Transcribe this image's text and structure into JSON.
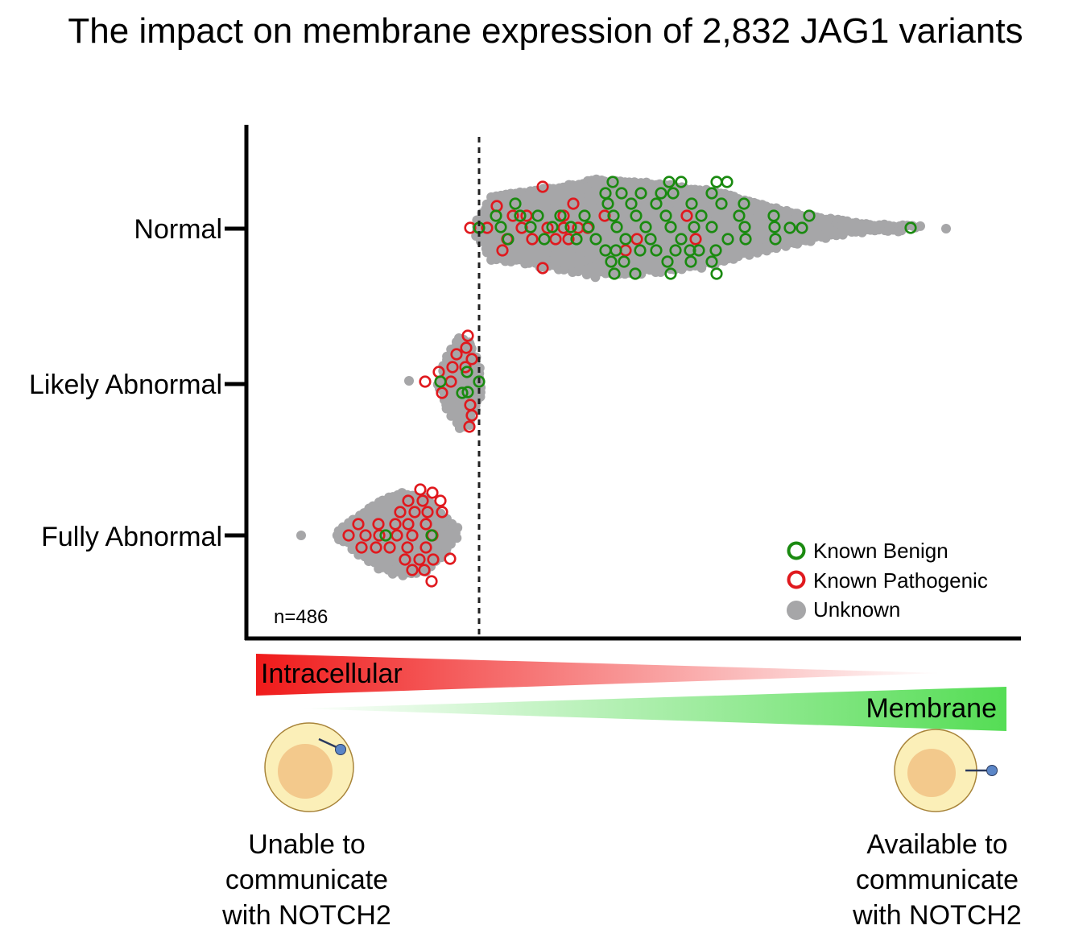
{
  "title": "The impact on membrane expression of 2,832 JAG1 variants",
  "chart_data": {
    "type": "scatter",
    "subtype": "beeswarm",
    "categories": [
      "Normal",
      "Likely Abnormal",
      "Fully Abnormal"
    ],
    "threshold_line": "dashed vertical line between Normal and Likely Abnormal groups",
    "n_label": "n=486",
    "legend_position": "bottom-right",
    "legend": [
      {
        "name": "Known Benign",
        "style": "open circle",
        "color": "#1a8a10"
      },
      {
        "name": "Known Pathogenic",
        "style": "open circle",
        "color": "#e0191e"
      },
      {
        "name": "Unknown",
        "style": "filled circle",
        "color": "#a6a6a8"
      }
    ],
    "x_axis": {
      "ticks": false,
      "labels": false
    },
    "grid": false
  },
  "gradient": {
    "left_label": "Intracellular",
    "right_label": "Membrane",
    "left_color": "#f01a1a",
    "right_color": "#55dd55"
  },
  "captions": {
    "left": [
      "Unable to",
      "communicate",
      "with NOTCH2"
    ],
    "right": [
      "Available to",
      "communicate",
      "with NOTCH2"
    ]
  },
  "colors": {
    "benign": "#1a8a10",
    "pathogenic": "#e0191e",
    "unknown": "#a6a6a8",
    "cell_outer": "#fbefb8",
    "cell_inner": "#f3c98c",
    "receptor": "#5b86c7"
  }
}
